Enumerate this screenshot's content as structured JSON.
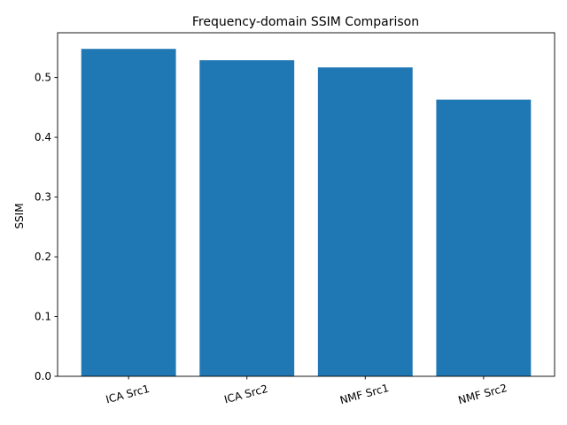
{
  "chart_data": {
    "type": "bar",
    "title": "Frequency-domain SSIM Comparison",
    "xlabel": "",
    "ylabel": "SSIM",
    "categories": [
      "ICA Src1",
      "ICA Src2",
      "NMF Src1",
      "NMF Src2"
    ],
    "values": [
      0.548,
      0.529,
      0.517,
      0.463
    ],
    "ylim": [
      0,
      0.575
    ],
    "yticks": [
      0.0,
      0.1,
      0.2,
      0.3,
      0.4,
      0.5
    ],
    "ytick_labels": [
      "0.0",
      "0.1",
      "0.2",
      "0.3",
      "0.4",
      "0.5"
    ],
    "bar_color": "#1f77b4",
    "grid": false,
    "xtick_rotation": "rotated ~15°"
  }
}
